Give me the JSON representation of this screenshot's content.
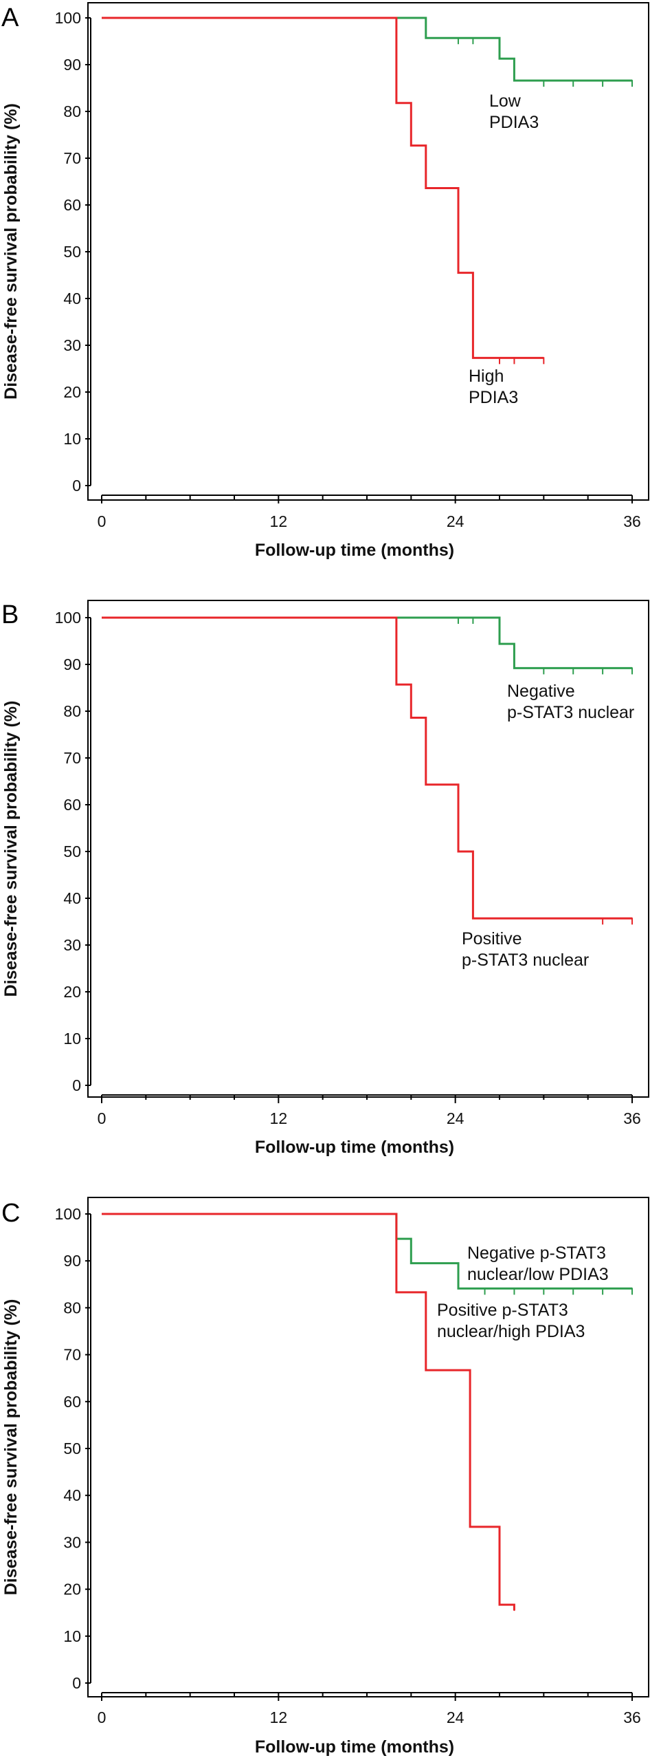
{
  "chart_data": [
    {
      "panel_label": "A",
      "type": "line",
      "subtype": "kaplan-meier",
      "xlabel": "Follow-up time (months)",
      "ylabel": "Disease-free survival probability (%)",
      "xlim": [
        0,
        36
      ],
      "ylim": [
        0,
        100
      ],
      "xticks": [
        0,
        12,
        24,
        36
      ],
      "yticks": [
        0,
        10,
        20,
        30,
        40,
        50,
        60,
        70,
        80,
        90,
        100
      ],
      "series": [
        {
          "name": "Low PDIA3",
          "label_lines": [
            "Low",
            "PDIA3"
          ],
          "color": "#2e9e4f",
          "steps": [
            [
              0,
              100
            ],
            [
              22,
              100
            ],
            [
              22,
              95.7
            ],
            [
              27,
              95.7
            ],
            [
              27,
              91.3
            ],
            [
              28,
              91.3
            ],
            [
              28,
              86.6
            ],
            [
              36,
              86.6
            ]
          ],
          "censored": [
            [
              24.2,
              95.7
            ],
            [
              25.2,
              95.7
            ],
            [
              30,
              86.6
            ],
            [
              32,
              86.6
            ],
            [
              34,
              86.6
            ],
            [
              36,
              86.6
            ]
          ]
        },
        {
          "name": "High PDIA3",
          "label_lines": [
            "High",
            "PDIA3"
          ],
          "color": "#e8262a",
          "steps": [
            [
              0,
              100
            ],
            [
              20,
              100
            ],
            [
              20,
              81.8
            ],
            [
              21,
              81.8
            ],
            [
              21,
              72.7
            ],
            [
              22,
              72.7
            ],
            [
              22,
              63.6
            ],
            [
              24.2,
              63.6
            ],
            [
              24.2,
              45.5
            ],
            [
              25.2,
              45.5
            ],
            [
              25.2,
              27.3
            ],
            [
              30,
              27.3
            ]
          ],
          "censored": [
            [
              27,
              27.3
            ],
            [
              28,
              27.3
            ],
            [
              30,
              27.3
            ]
          ]
        }
      ]
    },
    {
      "panel_label": "B",
      "type": "line",
      "subtype": "kaplan-meier",
      "xlabel": "Follow-up time (months)",
      "ylabel": "Disease-free survival probability (%)",
      "xlim": [
        0,
        36
      ],
      "ylim": [
        0,
        100
      ],
      "xticks": [
        0,
        12,
        24,
        36
      ],
      "yticks": [
        0,
        10,
        20,
        30,
        40,
        50,
        60,
        70,
        80,
        90,
        100
      ],
      "series": [
        {
          "name": "Negative p-STAT3 nuclear",
          "label_lines": [
            "Negative",
            "p-STAT3 nuclear"
          ],
          "color": "#2e9e4f",
          "steps": [
            [
              0,
              100
            ],
            [
              27,
              100
            ],
            [
              27,
              94.4
            ],
            [
              28,
              94.4
            ],
            [
              28,
              89.2
            ],
            [
              36,
              89.2
            ]
          ],
          "censored": [
            [
              24.2,
              100
            ],
            [
              25.2,
              100
            ],
            [
              30,
              89.2
            ],
            [
              32,
              89.2
            ],
            [
              34,
              89.2
            ],
            [
              36,
              89.2
            ]
          ]
        },
        {
          "name": "Positive p-STAT3 nuclear",
          "label_lines": [
            "Positive",
            "p-STAT3 nuclear"
          ],
          "color": "#e8262a",
          "steps": [
            [
              0,
              100
            ],
            [
              20,
              100
            ],
            [
              20,
              85.7
            ],
            [
              21,
              85.7
            ],
            [
              21,
              78.6
            ],
            [
              22,
              78.6
            ],
            [
              22,
              64.3
            ],
            [
              24.2,
              64.3
            ],
            [
              24.2,
              50
            ],
            [
              25.2,
              50
            ],
            [
              25.2,
              35.7
            ],
            [
              36,
              35.7
            ]
          ],
          "censored": [
            [
              34,
              35.7
            ],
            [
              36,
              35.7
            ]
          ]
        }
      ]
    },
    {
      "panel_label": "C",
      "type": "line",
      "subtype": "kaplan-meier",
      "xlabel": "Follow-up time (months)",
      "ylabel": "Disease-free survival probability (%)",
      "xlim": [
        0,
        36
      ],
      "ylim": [
        0,
        100
      ],
      "xticks": [
        0,
        12,
        24,
        36
      ],
      "yticks": [
        0,
        10,
        20,
        30,
        40,
        50,
        60,
        70,
        80,
        90,
        100
      ],
      "series": [
        {
          "name": "Negative p-STAT3 nuclear/low PDIA3",
          "label_lines": [
            "Negative p-STAT3",
            "nuclear/low PDIA3"
          ],
          "color": "#2e9e4f",
          "steps": [
            [
              0,
              100
            ],
            [
              20,
              100
            ],
            [
              20,
              94.7
            ],
            [
              21,
              94.7
            ],
            [
              21,
              89.5
            ],
            [
              24.2,
              89.5
            ],
            [
              24.2,
              84.1
            ],
            [
              36,
              84.1
            ]
          ],
          "censored": [
            [
              26,
              84.1
            ],
            [
              28,
              84.1
            ],
            [
              30,
              84.1
            ],
            [
              32,
              84.1
            ],
            [
              34,
              84.1
            ],
            [
              36,
              84.1
            ]
          ]
        },
        {
          "name": "Positive p-STAT3 nuclear/high PDIA3",
          "label_lines": [
            "Positive p-STAT3",
            "nuclear/high PDIA3"
          ],
          "color": "#e8262a",
          "steps": [
            [
              0,
              100
            ],
            [
              20,
              100
            ],
            [
              20,
              83.3
            ],
            [
              22,
              83.3
            ],
            [
              22,
              66.7
            ],
            [
              25,
              66.7
            ],
            [
              25,
              33.3
            ],
            [
              27,
              33.3
            ],
            [
              27,
              16.7
            ],
            [
              28,
              16.7
            ],
            [
              28,
              15.5
            ]
          ],
          "censored": [
            [
              28,
              16.7
            ]
          ]
        }
      ]
    }
  ]
}
